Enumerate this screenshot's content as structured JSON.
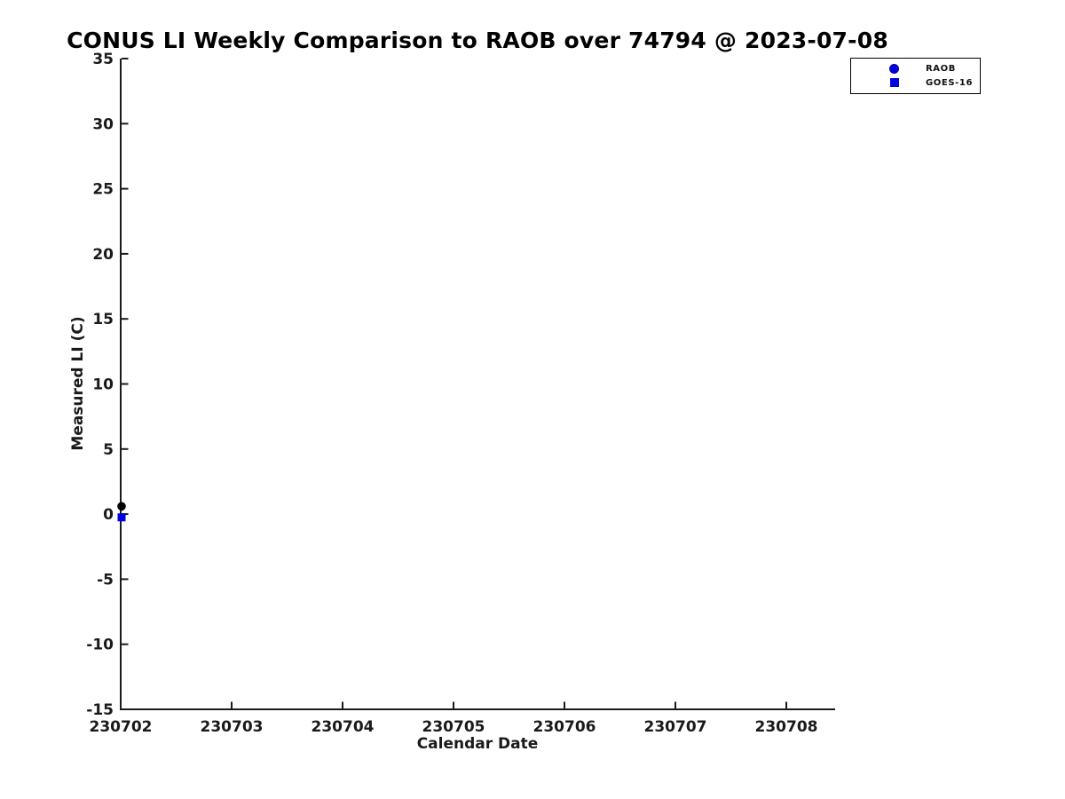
{
  "title": "CONUS LI Weekly Comparison to RAOB over 74794 @ 2023-07-08",
  "axes": {
    "xlabel": "Calendar Date",
    "ylabel": "Measured LI (C)"
  },
  "legend": {
    "items": [
      {
        "label": "RAOB",
        "marker": "circle-icon",
        "color": "#0000e0"
      },
      {
        "label": "GOES-16",
        "marker": "square-icon",
        "color": "#0000e0"
      }
    ]
  },
  "colors": {
    "axis": "#1a1a1a",
    "title": "#000000",
    "marker_blue": "#0000e0",
    "raob_point": "#000000"
  },
  "chart_data": {
    "type": "scatter",
    "title": "CONUS LI Weekly Comparison to RAOB over 74794 @ 2023-07-08",
    "xlabel": "Calendar Date",
    "ylabel": "Measured LI (C)",
    "x_ticks": [
      "230702",
      "230703",
      "230704",
      "230705",
      "230706",
      "230707",
      "230708"
    ],
    "y_ticks": [
      35,
      30,
      25,
      20,
      15,
      10,
      5,
      0,
      -5,
      -10,
      -15
    ],
    "ylim": [
      -15,
      35
    ],
    "xlim": [
      230702,
      230708.45
    ],
    "grid": false,
    "legend_position": "upper-right-outside",
    "series": [
      {
        "name": "RAOB",
        "marker": "circle",
        "marker_color": "#000000",
        "points": [
          {
            "x": 230702,
            "y": 0.6
          }
        ]
      },
      {
        "name": "GOES-16",
        "marker": "square",
        "marker_color": "#0000e0",
        "points": [
          {
            "x": 230702,
            "y": -0.25
          }
        ]
      }
    ]
  }
}
